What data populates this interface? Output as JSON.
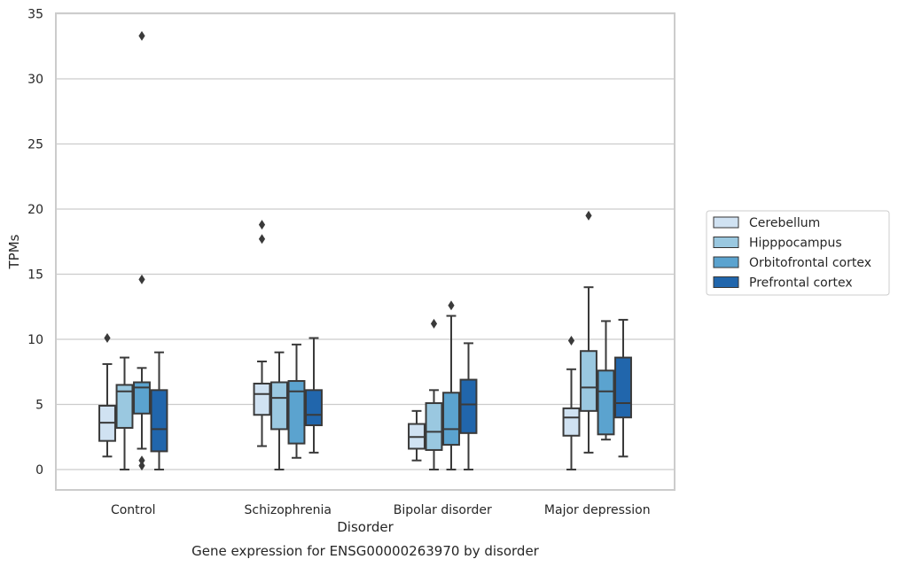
{
  "chart_data": {
    "type": "boxplot",
    "xlabel": "Disorder",
    "ylabel": "TPMs",
    "caption": "Gene expression for ENSG00000263970 by disorder",
    "ylim": [
      -1.5,
      35
    ],
    "yticks": [
      "0",
      "5",
      "10",
      "15",
      "20",
      "25",
      "30",
      "35"
    ],
    "grid": "horizontal",
    "legend_position": "right",
    "categories": [
      "Control",
      "Schizophrenia",
      "Bipolar disorder",
      "Major depression"
    ],
    "series": [
      {
        "name": "Cerebellum",
        "color": "#d0e2f2",
        "boxes": [
          {
            "whisker_low": 1.0,
            "q1": 2.2,
            "median": 3.6,
            "q3": 4.9,
            "whisker_high": 8.1,
            "outliers": [
              10.1
            ]
          },
          {
            "whisker_low": 1.8,
            "q1": 4.2,
            "median": 5.8,
            "q3": 6.6,
            "whisker_high": 8.3,
            "outliers": [
              18.8,
              17.7
            ]
          },
          {
            "whisker_low": 0.7,
            "q1": 1.6,
            "median": 2.5,
            "q3": 3.5,
            "whisker_high": 4.5,
            "outliers": []
          },
          {
            "whisker_low": 0.0,
            "q1": 2.6,
            "median": 4.0,
            "q3": 4.7,
            "whisker_high": 7.7,
            "outliers": [
              9.9
            ]
          }
        ]
      },
      {
        "name": "Hipppocampus",
        "color": "#9ac8e0",
        "boxes": [
          {
            "whisker_low": 0.0,
            "q1": 3.2,
            "median": 6.0,
            "q3": 6.5,
            "whisker_high": 8.6,
            "outliers": []
          },
          {
            "whisker_low": 0.0,
            "q1": 3.1,
            "median": 5.5,
            "q3": 6.7,
            "whisker_high": 9.0,
            "outliers": []
          },
          {
            "whisker_low": 0.0,
            "q1": 1.5,
            "median": 2.9,
            "q3": 5.1,
            "whisker_high": 6.1,
            "outliers": [
              11.2
            ]
          },
          {
            "whisker_low": 1.3,
            "q1": 4.5,
            "median": 6.3,
            "q3": 9.1,
            "whisker_high": 14.0,
            "outliers": [
              19.5
            ]
          }
        ]
      },
      {
        "name": "Orbitofrontal cortex",
        "color": "#5ba3cf",
        "boxes": [
          {
            "whisker_low": 1.6,
            "q1": 4.3,
            "median": 6.3,
            "q3": 6.7,
            "whisker_high": 7.8,
            "outliers": [
              33.3,
              14.6,
              0.7,
              0.3
            ]
          },
          {
            "whisker_low": 0.9,
            "q1": 2.0,
            "median": 6.0,
            "q3": 6.8,
            "whisker_high": 9.6,
            "outliers": []
          },
          {
            "whisker_low": 0.0,
            "q1": 1.9,
            "median": 3.1,
            "q3": 5.9,
            "whisker_high": 11.8,
            "outliers": [
              12.6
            ]
          },
          {
            "whisker_low": 2.3,
            "q1": 2.7,
            "median": 6.0,
            "q3": 7.6,
            "whisker_high": 11.4,
            "outliers": []
          }
        ]
      },
      {
        "name": "Prefrontal cortex",
        "color": "#2166ac",
        "boxes": [
          {
            "whisker_low": 0.0,
            "q1": 1.4,
            "median": 3.1,
            "q3": 6.1,
            "whisker_high": 9.0,
            "outliers": []
          },
          {
            "whisker_low": 1.3,
            "q1": 3.4,
            "median": 4.2,
            "q3": 6.1,
            "whisker_high": 10.1,
            "outliers": []
          },
          {
            "whisker_low": 0.0,
            "q1": 2.8,
            "median": 5.0,
            "q3": 6.9,
            "whisker_high": 9.7,
            "outliers": []
          },
          {
            "whisker_low": 1.0,
            "q1": 4.0,
            "median": 5.1,
            "q3": 8.6,
            "whisker_high": 11.5,
            "outliers": []
          }
        ]
      }
    ]
  }
}
